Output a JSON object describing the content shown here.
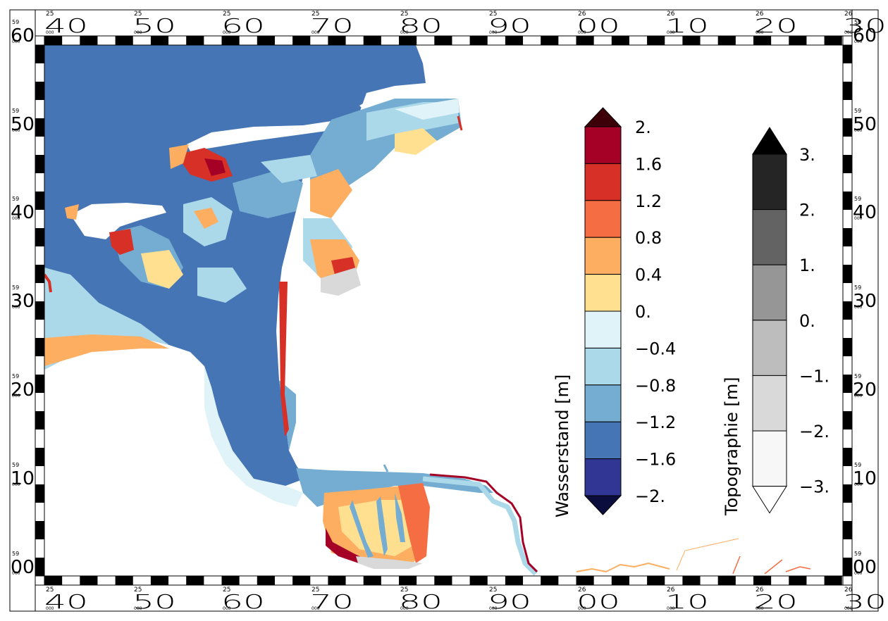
{
  "frame": {
    "x_labels": [
      {
        "small": "25",
        "big": "40"
      },
      {
        "small": "25",
        "big": "50"
      },
      {
        "small": "25",
        "big": "60"
      },
      {
        "small": "25",
        "big": "70"
      },
      {
        "small": "25",
        "big": "80"
      },
      {
        "small": "25",
        "big": "90"
      },
      {
        "small": "26",
        "big": "00"
      },
      {
        "small": "26",
        "big": "10"
      },
      {
        "small": "26",
        "big": "20"
      },
      {
        "small": "26",
        "big": "30"
      }
    ],
    "y_labels": [
      {
        "small": "59",
        "tiny": "000",
        "big": "60"
      },
      {
        "small": "59",
        "tiny": "000",
        "big": "50"
      },
      {
        "small": "59",
        "tiny": "000",
        "big": "40"
      },
      {
        "small": "59",
        "tiny": "000",
        "big": "30"
      },
      {
        "small": "59",
        "tiny": "000",
        "big": "20"
      },
      {
        "small": "59",
        "tiny": "000",
        "big": "10"
      },
      {
        "small": "59",
        "tiny": "000",
        "big": "00"
      }
    ],
    "tiny_suffix": "000"
  },
  "legend_water": {
    "title": "Wasserstand [m]",
    "levels": [
      "2.",
      "1.6",
      "1.2",
      "0.8",
      "0.4",
      "0.",
      "−0.4",
      "−0.8",
      "−1.2",
      "−1.6",
      "−2."
    ],
    "colors": [
      "#a50026",
      "#d73027",
      "#f46d43",
      "#fdae61",
      "#fee090",
      "#e0f3f8",
      "#abd9e9",
      "#74add1",
      "#4575b4",
      "#313695"
    ],
    "over_color": "#3d0008",
    "under_color": "#0b0d3d"
  },
  "legend_topo": {
    "title": "Topographie [m]",
    "levels": [
      "3.",
      "2.",
      "1.",
      "0.",
      "−1.",
      "−2.",
      "−3."
    ],
    "colors": [
      "#252525",
      "#636363",
      "#969696",
      "#bdbdbd",
      "#d9d9d9",
      "#f7f7f7"
    ],
    "over_color": "#000000",
    "under_color": "#ffffff"
  },
  "map_colors": {
    "deep": "#4575b4",
    "mid": "#74add1",
    "light": "#abd9e9",
    "pale": "#e0f3f8",
    "yellow": "#fee090",
    "orange": "#fdae61",
    "red_orange": "#f46d43",
    "red": "#d73027",
    "dark_red": "#a50026",
    "grey": "#d9d9d9"
  }
}
